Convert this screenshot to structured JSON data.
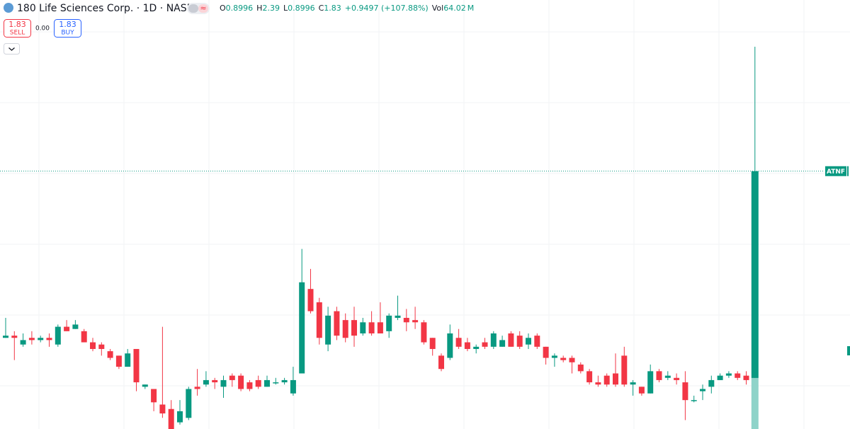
{
  "header": {
    "symbol": "180 Life Sciences Corp. · 1D · NASDAQ",
    "ohlc": [
      {
        "label": "O",
        "value": "0.8996"
      },
      {
        "label": "H",
        "value": "2.39"
      },
      {
        "label": "L",
        "value": "0.8996"
      },
      {
        "label": "C",
        "value": "1.83"
      }
    ],
    "change": "+0.9497 (+107.88%)",
    "volume_label": "Vol",
    "volume": "64.02",
    "volume_unit": "M"
  },
  "trade": {
    "sell_price": "1.83",
    "sell": "SELL",
    "spread": "0.00",
    "buy_price": "1.83",
    "buy": "BUY"
  },
  "chart_data": {
    "type": "candlestick",
    "open": [
      1.08,
      1.09,
      1.05,
      1.08,
      1.07,
      1.08,
      1.05,
      1.13,
      1.12,
      1.11,
      1.06,
      1.05,
      1.02,
      1.0,
      0.95,
      1.03,
      0.86,
      0.85,
      0.78,
      0.76,
      0.7,
      0.72,
      0.86,
      0.87,
      0.89,
      0.86,
      0.91,
      0.91,
      0.88,
      0.89,
      0.86,
      0.88,
      0.88,
      0.83,
      0.92,
      1.3,
      1.24,
      1.05,
      1.2,
      1.16,
      1.16,
      1.1,
      1.15,
      1.15,
      1.11,
      1.17,
      1.17,
      1.16,
      1.15,
      1.08,
      1.0,
      0.99,
      1.08,
      1.06,
      1.03,
      1.06,
      1.04,
      1.04,
      1.1,
      1.09,
      1.05,
      1.09,
      1.04,
      0.99,
      0.99,
      0.99,
      0.96,
      0.93,
      0.88,
      0.91,
      0.92,
      1.0,
      0.87,
      0.86,
      0.83,
      0.93,
      0.9,
      0.9,
      0.88,
      0.8,
      0.84,
      0.86,
      0.89,
      0.91,
      0.92,
      0.91,
      0.8996
    ],
    "high": [
      1.17,
      1.11,
      1.1,
      1.11,
      1.09,
      1.1,
      1.14,
      1.16,
      1.16,
      1.12,
      1.08,
      1.06,
      1.03,
      1.0,
      1.03,
      1.03,
      0.87,
      0.85,
      1.13,
      0.8,
      0.8,
      0.86,
      0.94,
      0.93,
      0.9,
      0.91,
      0.92,
      0.92,
      0.89,
      0.91,
      0.91,
      0.9,
      0.9,
      0.95,
      1.48,
      1.39,
      1.26,
      1.22,
      1.22,
      1.19,
      1.22,
      1.17,
      1.2,
      1.24,
      1.19,
      1.27,
      1.21,
      1.22,
      1.16,
      1.08,
      1.01,
      1.14,
      1.12,
      1.08,
      1.05,
      1.08,
      1.11,
      1.09,
      1.11,
      1.11,
      1.1,
      1.1,
      1.04,
      1.01,
      1.0,
      1.0,
      0.97,
      0.94,
      0.91,
      0.92,
      1.01,
      1.04,
      0.89,
      0.86,
      0.96,
      0.94,
      0.93,
      0.92,
      0.93,
      0.82,
      0.87,
      0.91,
      0.92,
      0.93,
      0.93,
      0.93,
      2.39
    ],
    "low": [
      1.08,
      0.98,
      1.04,
      1.05,
      1.06,
      1.04,
      1.04,
      1.11,
      1.12,
      1.06,
      1.02,
      1.0,
      0.98,
      0.94,
      0.95,
      0.84,
      0.85,
      0.75,
      0.72,
      0.67,
      0.69,
      0.71,
      0.82,
      0.86,
      0.85,
      0.81,
      0.86,
      0.84,
      0.84,
      0.85,
      0.86,
      0.87,
      0.87,
      0.82,
      0.92,
      1.19,
      1.05,
      1.02,
      1.07,
      1.06,
      1.04,
      1.09,
      1.09,
      1.1,
      1.08,
      1.16,
      1.11,
      1.12,
      1.05,
      1.0,
      0.93,
      0.98,
      1.03,
      1.02,
      1.01,
      1.03,
      1.03,
      1.04,
      1.04,
      1.03,
      1.03,
      1.03,
      0.96,
      0.95,
      0.97,
      0.92,
      0.92,
      0.87,
      0.86,
      0.86,
      0.86,
      0.86,
      0.82,
      0.82,
      0.83,
      0.88,
      0.89,
      0.87,
      0.71,
      0.79,
      0.8,
      0.83,
      0.89,
      0.9,
      0.89,
      0.87,
      0.8996
    ],
    "close": [
      1.09,
      1.08,
      1.07,
      1.07,
      1.08,
      1.07,
      1.13,
      1.11,
      1.14,
      1.06,
      1.03,
      1.03,
      0.99,
      0.95,
      1.01,
      0.88,
      0.87,
      0.79,
      0.74,
      0.67,
      0.75,
      0.85,
      0.85,
      0.89,
      0.88,
      0.89,
      0.89,
      0.85,
      0.85,
      0.86,
      0.89,
      0.88,
      0.89,
      0.89,
      1.33,
      1.2,
      1.08,
      1.18,
      1.09,
      1.08,
      1.09,
      1.15,
      1.1,
      1.1,
      1.18,
      1.18,
      1.15,
      1.15,
      1.06,
      1.03,
      0.94,
      1.1,
      1.04,
      1.03,
      1.04,
      1.04,
      1.1,
      1.07,
      1.04,
      1.04,
      1.08,
      1.04,
      0.99,
      1.0,
      0.98,
      0.97,
      0.93,
      0.88,
      0.87,
      0.87,
      0.87,
      0.87,
      0.88,
      0.83,
      0.93,
      0.89,
      0.91,
      0.89,
      0.8,
      0.8,
      0.85,
      0.89,
      0.91,
      0.92,
      0.9,
      0.89,
      1.83
    ],
    "ylim": [
      0.67,
      2.6
    ],
    "up_color": "#089981",
    "down_color": "#f23645",
    "price_label": "ATNF"
  }
}
